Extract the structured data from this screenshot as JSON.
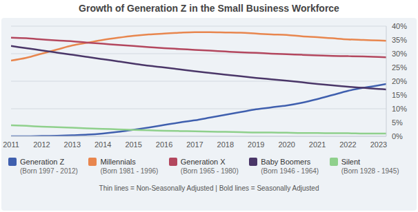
{
  "chart_data": {
    "type": "line",
    "title": "Growth of Generation Z in the Small Business Workforce",
    "x": [
      2011,
      2011.5,
      2012,
      2012.5,
      2013,
      2013.5,
      2014,
      2014.5,
      2015,
      2015.5,
      2016,
      2016.5,
      2017,
      2017.5,
      2018,
      2018.5,
      2019,
      2019.5,
      2020,
      2020.5,
      2021,
      2021.5,
      2022,
      2022.5,
      2023,
      2023.25
    ],
    "series": [
      {
        "name": "Generation Z",
        "birth_years": "(Born 1997 - 2012)",
        "color": "#3f5fae",
        "values": [
          0,
          0,
          0.1,
          0.2,
          0.4,
          0.6,
          1.0,
          1.6,
          2.4,
          3.2,
          4.1,
          5.0,
          5.8,
          6.8,
          7.8,
          8.8,
          9.8,
          10.5,
          11.2,
          12.2,
          13.5,
          15,
          16.5,
          17.6,
          18.5,
          19
        ]
      },
      {
        "name": "Millennials",
        "birth_years": "(Born 1981 - 1996)",
        "color": "#e8864e",
        "values": [
          27.5,
          28.5,
          30,
          31.5,
          33,
          34,
          35,
          35.8,
          36.5,
          37,
          37.3,
          37.6,
          37.8,
          37.8,
          37.7,
          37.6,
          37.3,
          37,
          36.8,
          36.3,
          36,
          35.6,
          35.2,
          35,
          34.8,
          34.7
        ]
      },
      {
        "name": "Generation X",
        "birth_years": "(Born 1965 - 1980)",
        "color": "#b3475e",
        "values": [
          35.8,
          35.6,
          35.2,
          34.8,
          34.5,
          34,
          33.6,
          33.2,
          32.8,
          32.4,
          32,
          31.7,
          31.4,
          31.1,
          30.8,
          30.5,
          30.3,
          30,
          29.8,
          29.6,
          29.4,
          29.2,
          29.1,
          29,
          28.8,
          28.7
        ]
      },
      {
        "name": "Baby Boomers",
        "birth_years": "(Born 1946 - 1964)",
        "color": "#4a3668",
        "values": [
          32.8,
          32,
          31.2,
          30.4,
          29.6,
          28.8,
          28,
          27.2,
          26.4,
          25.6,
          25,
          24.3,
          23.6,
          23,
          22.4,
          21.8,
          21.2,
          20.7,
          20.2,
          19.6,
          19,
          18.5,
          18,
          17.6,
          17.2,
          17
        ]
      },
      {
        "name": "Silent",
        "birth_years": "(Born 1928 - 1945)",
        "color": "#8fd08c",
        "values": [
          4,
          3.8,
          3.5,
          3.3,
          3.1,
          2.9,
          2.7,
          2.5,
          2.3,
          2.2,
          2.0,
          1.9,
          1.8,
          1.7,
          1.6,
          1.5,
          1.4,
          1.4,
          1.3,
          1.2,
          1.2,
          1.1,
          1.1,
          1.0,
          1.0,
          1.0
        ]
      }
    ],
    "xlim": [
      2011,
      2023.25
    ],
    "xticks": [
      2011,
      2012,
      2013,
      2014,
      2015,
      2016,
      2017,
      2018,
      2019,
      2020,
      2021,
      2022,
      2023
    ],
    "ylim": [
      0,
      40
    ],
    "yticks": [
      {
        "value": 0,
        "label": "0%"
      },
      {
        "value": 5,
        "label": "5%"
      },
      {
        "value": 10,
        "label": "10%"
      },
      {
        "value": 15,
        "label": "15%"
      },
      {
        "value": 20,
        "label": "20%"
      },
      {
        "value": 25,
        "label": "25%"
      },
      {
        "value": 30,
        "label": "30%"
      },
      {
        "value": 35,
        "label": "35%"
      },
      {
        "value": 40,
        "label": "40%"
      }
    ],
    "grid": true,
    "note": "Thin lines = Non-Seasonally Adjusted | Bold lines = Seasonally Adjusted"
  }
}
